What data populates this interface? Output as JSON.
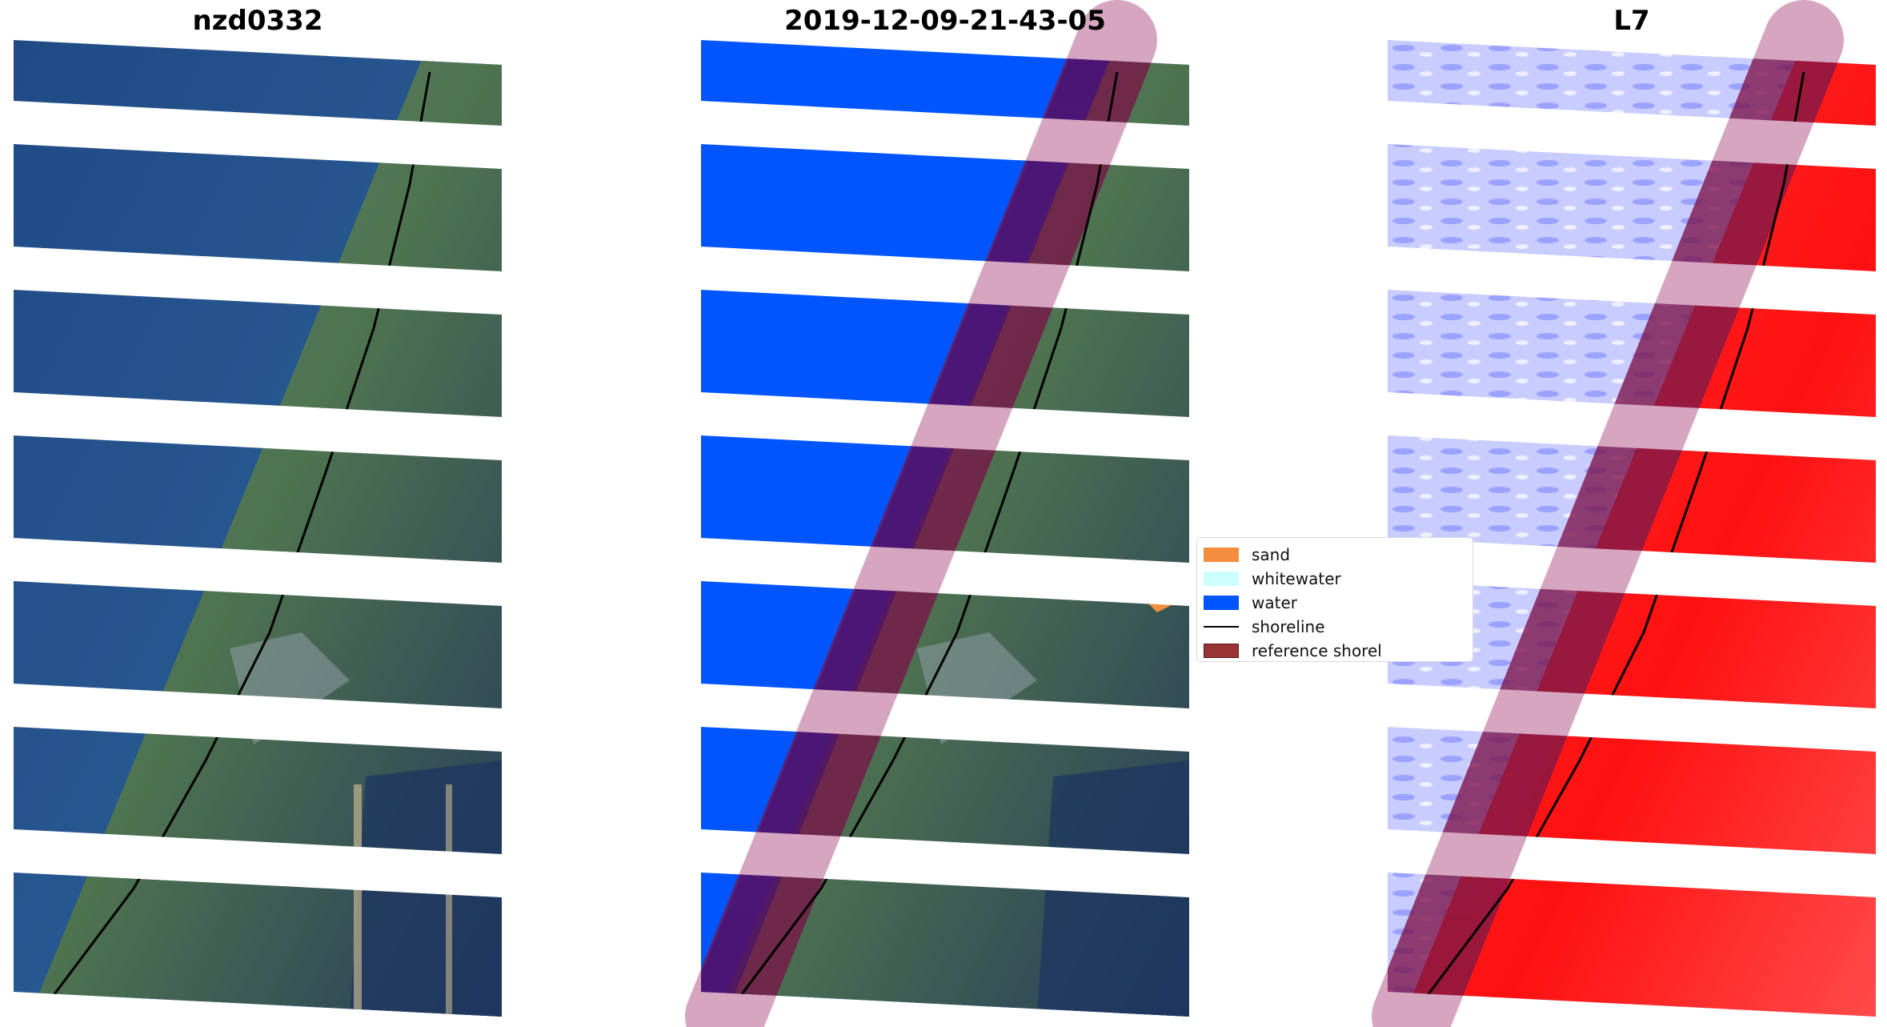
{
  "panels": [
    {
      "title": "nzd0332"
    },
    {
      "title": "2019-12-09-21-43-05"
    },
    {
      "title": "L7"
    }
  ],
  "legend": {
    "items": [
      {
        "label": "sand",
        "color": "#f28e3d"
      },
      {
        "label": "whitewater",
        "color": "#ccffff"
      },
      {
        "label": "water",
        "color": "#0055ff"
      },
      {
        "label": "shoreline",
        "color": "#000000"
      },
      {
        "label": "reference shorel",
        "color": "#9a3336"
      }
    ]
  },
  "colors": {
    "rgb_water": "#24508a",
    "rgb_land": "#4f7455",
    "class_water": "#0055ff",
    "index_water": "#b8bcff",
    "index_land": "#ff1f1f",
    "buffer_overlay": "#9a2a6a",
    "water_side_overlay": "#5a1aa0",
    "land_side_overlay": "#7a1a3a"
  }
}
